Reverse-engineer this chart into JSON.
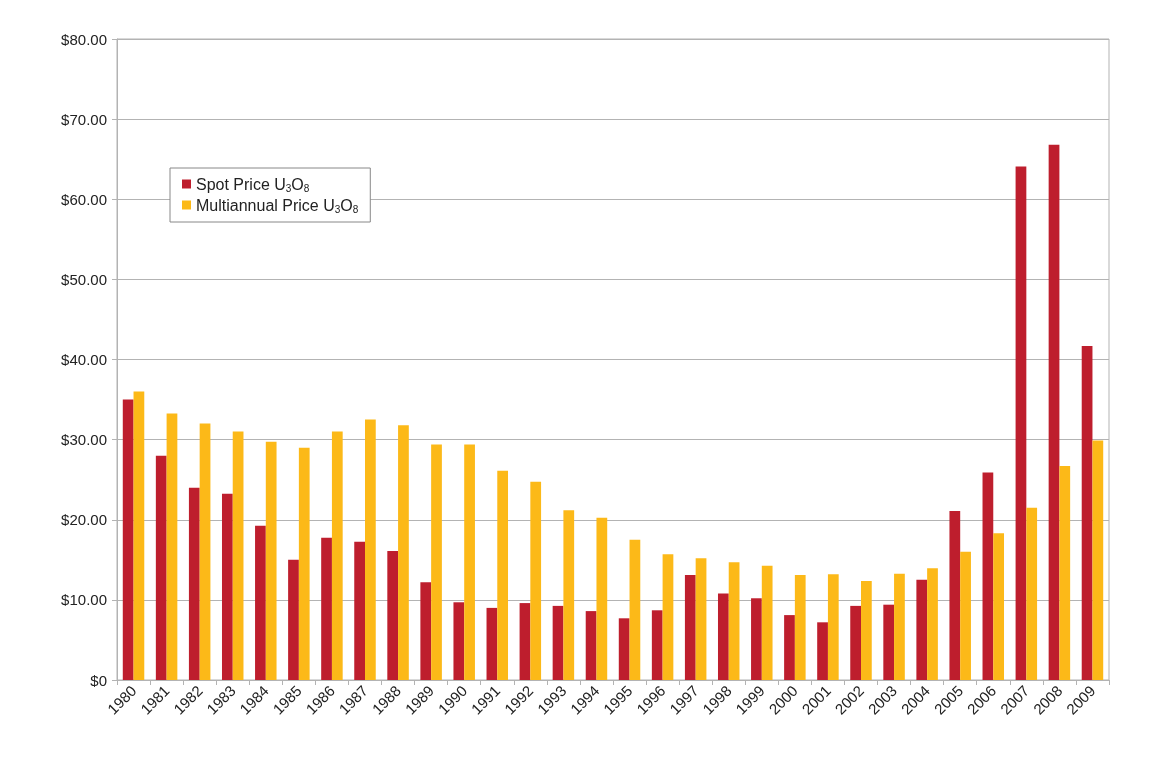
{
  "chart_data": {
    "type": "bar",
    "categories": [
      "1980",
      "1981",
      "1982",
      "1983",
      "1984",
      "1985",
      "1986",
      "1987",
      "1988",
      "1989",
      "1990",
      "1991",
      "1992",
      "1993",
      "1994",
      "1995",
      "1996",
      "1997",
      "1998",
      "1999",
      "2000",
      "2001",
      "2002",
      "2003",
      "2004",
      "2005",
      "2006",
      "2007",
      "2008",
      "2009"
    ],
    "series": [
      {
        "name": "Spot Price U$_{3}$O$_{8}$",
        "color": "#be1e2d",
        "values": [
          35.0,
          28.0,
          24.0,
          23.25,
          19.25,
          15.0,
          17.75,
          17.25,
          16.1,
          12.2,
          9.7,
          9.0,
          9.6,
          9.25,
          8.6,
          7.7,
          8.7,
          13.1,
          10.8,
          10.2,
          8.1,
          7.2,
          9.25,
          9.4,
          12.5,
          21.1,
          25.9,
          64.1,
          66.8,
          41.7
        ]
      },
      {
        "name": "Multiannual Price U$_{3}$O$_{8}$",
        "color": "#fcb918",
        "values": [
          36.0,
          33.25,
          32.0,
          31.0,
          29.75,
          29.0,
          31.0,
          32.5,
          31.8,
          29.4,
          29.4,
          26.1,
          24.75,
          21.2,
          20.25,
          17.5,
          15.7,
          15.2,
          14.7,
          14.25,
          13.1,
          13.2,
          12.35,
          13.25,
          13.95,
          16.0,
          18.3,
          21.5,
          26.7,
          29.9
        ]
      }
    ],
    "ylim": [
      0,
      80
    ],
    "yticks": [
      {
        "value": 0,
        "label": "$0"
      },
      {
        "value": 10,
        "label": "$10.00"
      },
      {
        "value": 20,
        "label": "$20.00"
      },
      {
        "value": 30,
        "label": "$30.00"
      },
      {
        "value": 40,
        "label": "$40.00"
      },
      {
        "value": 50,
        "label": "$50.00"
      },
      {
        "value": 60,
        "label": "$60.00"
      },
      {
        "value": 70,
        "label": "$70.00"
      },
      {
        "value": 80,
        "label": "$80.00"
      }
    ],
    "grid": "y",
    "legend": "top left"
  }
}
